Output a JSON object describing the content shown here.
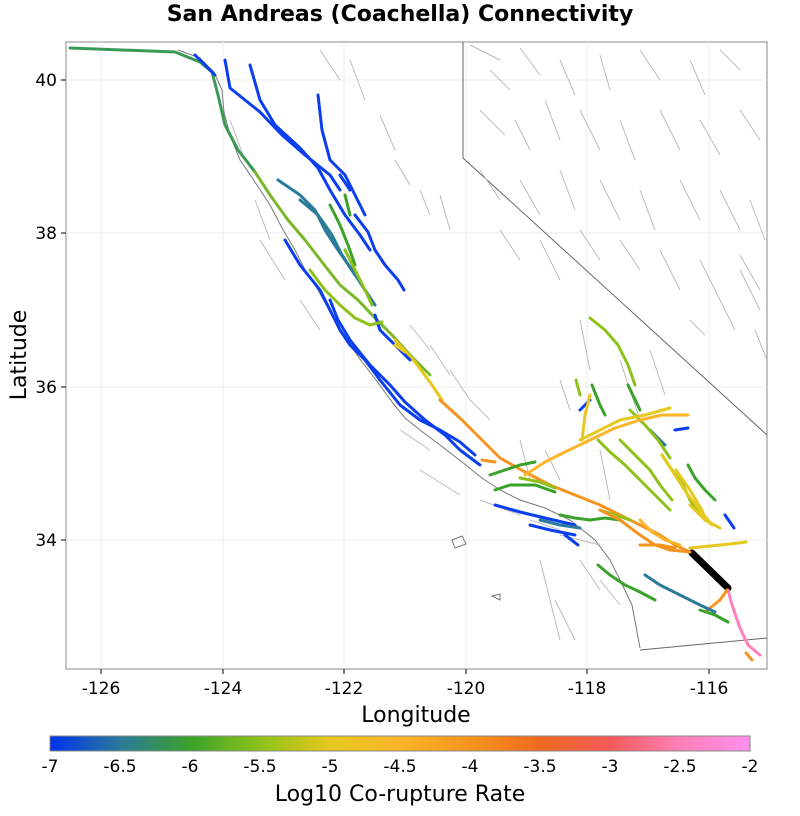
{
  "title": "San Andreas (Coachella) Connectivity",
  "x_axis": {
    "label": "Longitude",
    "ticks": [
      "-126",
      "-124",
      "-122",
      "-120",
      "-118",
      "-116"
    ]
  },
  "y_axis": {
    "label": "Latitude",
    "ticks": [
      "40",
      "38",
      "36",
      "34"
    ]
  },
  "colorbar": {
    "label": "Log10 Co-rupture Rate",
    "ticks": [
      "-7",
      "-6.5",
      "-6",
      "-5.5",
      "-5",
      "-4.5",
      "-4",
      "-3.5",
      "-3",
      "-2.5",
      "-2"
    ],
    "stops": [
      "#0033ee",
      "#2a7a9a",
      "#3aa22a",
      "#8ec21a",
      "#e6c81e",
      "#fbb52a",
      "#f5941e",
      "#ef6a1e",
      "#f65a5a",
      "#ff80b8",
      "#ff90ee"
    ]
  },
  "highlight_section_color": "#000000"
}
